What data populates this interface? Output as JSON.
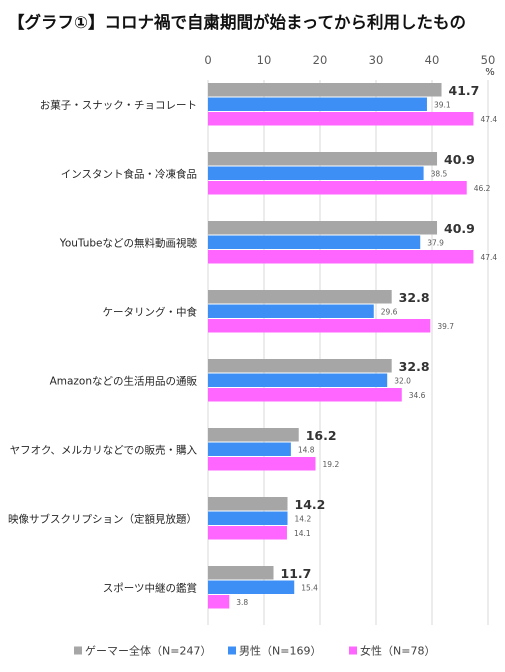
{
  "chart_data": {
    "type": "bar",
    "orientation": "horizontal",
    "title": "【グラフ①】コロナ禍で自粛期間が始まってから利用したもの",
    "unit": "%",
    "xlim": [
      0,
      50
    ],
    "ticks": [
      0,
      10,
      20,
      30,
      40,
      50
    ],
    "grid": true,
    "legend_position": "bottom",
    "categories": [
      "お菓子・スナック・チョコレート",
      "インスタント食品・冷凍食品",
      "YouTubeなどの無料動画視聴",
      "ケータリング・中食",
      "Amazonなどの生活用品の通販",
      "ヤフオク、メルカリなどでの販売・購入",
      "映像サブスクリプション（定額見放題）",
      "スポーツ中継の鑑賞"
    ],
    "series": [
      {
        "name": "ゲーマー全体（N=247）",
        "color": "#a6a6a6",
        "values": [
          41.7,
          40.9,
          40.9,
          32.8,
          32.8,
          16.2,
          14.2,
          11.7
        ],
        "labels": [
          "41.7",
          "40.9",
          "40.9",
          "32.8",
          "32.8",
          "16.2",
          "14.2",
          "11.7"
        ]
      },
      {
        "name": "男性（N=169）",
        "color": "#3d8ff5",
        "values": [
          39.1,
          38.5,
          37.9,
          29.6,
          32.0,
          14.8,
          14.2,
          15.4
        ],
        "labels": [
          "39.1",
          "38.5",
          "37.9",
          "29.6",
          "32.0",
          "14.8",
          "14.2",
          "15.4"
        ]
      },
      {
        "name": "女性（N=78）",
        "color": "#ff66ff",
        "values": [
          47.4,
          46.2,
          47.4,
          39.7,
          34.6,
          19.2,
          14.1,
          3.8
        ],
        "labels": [
          "47.4",
          "46.2",
          "47.4",
          "39.7",
          "34.6",
          "19.2",
          "14.1",
          "3.8"
        ]
      }
    ]
  }
}
